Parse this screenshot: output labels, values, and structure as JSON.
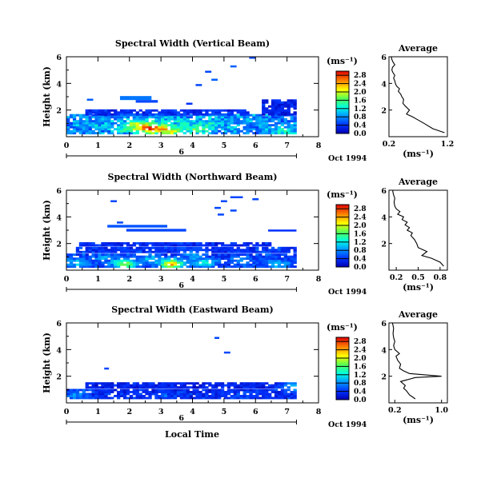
{
  "figure": {
    "bottom_xlabel": "Local Time",
    "colorbar": {
      "label": "(ms⁻¹)",
      "ticks": [
        "0.0",
        "0.4",
        "0.8",
        "1.2",
        "1.6",
        "2.0",
        "2.4",
        "2.8"
      ],
      "range": [
        0.0,
        3.0
      ]
    },
    "average_title": "Average",
    "average_xlabel": "(ms⁻¹)"
  },
  "chart_data": [
    {
      "type": "heatmap",
      "title": "Spectral Width (Vertical Beam)",
      "xlabel": "",
      "ylabel": "Height (km)",
      "xlim": [
        0,
        8
      ],
      "ylim": [
        0,
        6
      ],
      "x_ticks": [
        "0",
        "1",
        "2",
        "3",
        "4",
        "5",
        "6",
        "7",
        "8"
      ],
      "y_ticks": [
        "2",
        "4",
        "6"
      ],
      "date_bar": {
        "label": "6",
        "date": "Oct 1994",
        "span": [
          0,
          7.3
        ]
      },
      "color_scale": {
        "min": 0.0,
        "max": 3.0,
        "unit": "ms-1"
      },
      "bands": [
        {
          "t0": 0.0,
          "t1": 7.3,
          "h0": 0.2,
          "h1": 1.6,
          "level": 0.8
        },
        {
          "t0": 0.6,
          "t1": 5.8,
          "h0": 1.6,
          "h1": 2.0,
          "level": 0.35
        },
        {
          "t0": 6.2,
          "t1": 7.3,
          "h0": 1.6,
          "h1": 2.7,
          "level": 0.3
        }
      ],
      "cells": [
        {
          "t": 2.6,
          "h": 0.5,
          "v": 2.4
        },
        {
          "t": 2.2,
          "h": 0.8,
          "v": 1.9
        },
        {
          "t": 3.0,
          "h": 0.6,
          "v": 1.6
        },
        {
          "t": 1.7,
          "h": 0.5,
          "v": 1.3
        },
        {
          "t": 4.1,
          "h": 0.5,
          "v": 1.7
        },
        {
          "t": 4.5,
          "h": 0.9,
          "v": 1.2
        },
        {
          "t": 3.6,
          "h": 1.0,
          "v": 1.1
        },
        {
          "t": 5.2,
          "h": 0.4,
          "v": 1.0
        },
        {
          "t": 1.1,
          "h": 0.9,
          "v": 1.0
        },
        {
          "t": 6.4,
          "h": 0.6,
          "v": 1.0
        },
        {
          "t": 0.4,
          "h": 0.7,
          "v": 0.9
        },
        {
          "t": 2.9,
          "h": 1.2,
          "v": 1.1
        },
        {
          "t": 5.8,
          "h": 1.1,
          "v": 0.9
        },
        {
          "t": 6.9,
          "h": 0.3,
          "v": 1.2
        },
        {
          "t": 3.3,
          "h": 0.3,
          "v": 1.8
        },
        {
          "t": 1.9,
          "h": 1.3,
          "v": 0.9
        },
        {
          "t": 4.8,
          "h": 1.3,
          "v": 1.0
        }
      ],
      "patches": [
        {
          "t0": 0.65,
          "t1": 0.85,
          "h0": 2.7,
          "h1": 2.85,
          "v": 0.6
        },
        {
          "t0": 1.7,
          "t1": 2.7,
          "h0": 2.75,
          "h1": 3.05,
          "v": 0.7
        },
        {
          "t0": 2.2,
          "t1": 2.9,
          "h0": 2.55,
          "h1": 2.75,
          "v": 0.5
        },
        {
          "t0": 3.8,
          "t1": 4.0,
          "h0": 2.4,
          "h1": 2.55,
          "v": 0.4
        },
        {
          "t0": 4.1,
          "t1": 4.3,
          "h0": 3.8,
          "h1": 3.95,
          "v": 0.5
        },
        {
          "t0": 4.6,
          "t1": 4.8,
          "h0": 4.2,
          "h1": 4.35,
          "v": 0.6
        },
        {
          "t0": 4.4,
          "t1": 4.6,
          "h0": 4.8,
          "h1": 4.95,
          "v": 0.5
        },
        {
          "t0": 5.2,
          "t1": 5.4,
          "h0": 5.2,
          "h1": 5.35,
          "v": 0.6
        },
        {
          "t0": 5.8,
          "t1": 6.0,
          "h0": 5.85,
          "h1": 6.0,
          "v": 0.5
        }
      ],
      "average": {
        "xlim": [
          0.2,
          1.2
        ],
        "ylim": [
          0,
          6
        ],
        "x_ticks": [
          "0.2",
          "1.2"
        ],
        "y_ticks": [
          "2",
          "4",
          "6"
        ],
        "x": [
          1.15,
          0.95,
          0.8,
          0.68,
          0.6,
          0.5,
          0.55,
          0.48,
          0.44,
          0.45,
          0.42,
          0.4,
          0.36,
          0.38,
          0.33,
          0.31,
          0.3,
          0.28,
          0.3,
          0.27,
          0.25,
          0.26,
          0.3,
          0.27,
          0.25,
          0.24
        ],
        "h": [
          0.3,
          0.6,
          1.0,
          1.3,
          1.5,
          1.7,
          2.0,
          2.3,
          2.5,
          2.8,
          3.0,
          3.2,
          3.4,
          3.6,
          3.8,
          4.0,
          4.2,
          4.4,
          4.6,
          4.8,
          5.0,
          5.2,
          5.4,
          5.6,
          5.8,
          6.0
        ]
      }
    },
    {
      "type": "heatmap",
      "title": "Spectral Width (Northward Beam)",
      "xlabel": "",
      "ylabel": "Height (km)",
      "xlim": [
        0,
        8
      ],
      "ylim": [
        0,
        6
      ],
      "x_ticks": [
        "0",
        "1",
        "2",
        "3",
        "4",
        "5",
        "6",
        "7",
        "8"
      ],
      "y_ticks": [
        "2",
        "4",
        "6"
      ],
      "date_bar": {
        "label": "6",
        "date": "Oct 1994",
        "span": [
          0,
          7.3
        ]
      },
      "color_scale": {
        "min": 0.0,
        "max": 3.0,
        "unit": "ms-1"
      },
      "bands": [
        {
          "t0": 0.0,
          "t1": 7.3,
          "h0": 0.2,
          "h1": 1.2,
          "level": 0.45
        },
        {
          "t0": 0.3,
          "t1": 7.3,
          "h0": 1.3,
          "h1": 1.7,
          "level": 0.4
        },
        {
          "t0": 0.4,
          "t1": 6.5,
          "h0": 1.8,
          "h1": 2.1,
          "level": 0.35
        }
      ],
      "cells": [
        {
          "t": 3.3,
          "h": 0.4,
          "v": 2.3
        },
        {
          "t": 1.8,
          "h": 0.4,
          "v": 1.8
        },
        {
          "t": 0.3,
          "h": 0.5,
          "v": 1.1
        },
        {
          "t": 2.6,
          "h": 0.8,
          "v": 1.0
        },
        {
          "t": 4.3,
          "h": 0.5,
          "v": 1.2
        },
        {
          "t": 5.5,
          "h": 0.7,
          "v": 0.9
        },
        {
          "t": 6.7,
          "h": 0.4,
          "v": 1.0
        },
        {
          "t": 1.2,
          "h": 0.9,
          "v": 0.8
        },
        {
          "t": 3.9,
          "h": 1.1,
          "v": 0.8
        }
      ],
      "patches": [
        {
          "t0": 1.3,
          "t1": 3.2,
          "h0": 3.2,
          "h1": 3.4,
          "v": 0.55
        },
        {
          "t0": 1.9,
          "t1": 3.8,
          "h0": 2.9,
          "h1": 3.1,
          "v": 0.5
        },
        {
          "t0": 6.4,
          "t1": 7.3,
          "h0": 2.9,
          "h1": 3.05,
          "v": 0.4
        },
        {
          "t0": 1.6,
          "t1": 1.8,
          "h0": 3.5,
          "h1": 3.65,
          "v": 0.5
        },
        {
          "t0": 1.4,
          "t1": 1.6,
          "h0": 5.1,
          "h1": 5.25,
          "v": 0.5
        },
        {
          "t0": 4.8,
          "t1": 5.0,
          "h0": 4.1,
          "h1": 4.25,
          "v": 0.5
        },
        {
          "t0": 5.2,
          "t1": 5.4,
          "h0": 4.4,
          "h1": 4.55,
          "v": 0.5
        },
        {
          "t0": 5.2,
          "t1": 5.6,
          "h0": 5.4,
          "h1": 5.55,
          "v": 0.5
        },
        {
          "t0": 4.9,
          "t1": 5.1,
          "h0": 5.1,
          "h1": 5.25,
          "v": 0.5
        },
        {
          "t0": 5.9,
          "t1": 6.1,
          "h0": 5.25,
          "h1": 5.4,
          "v": 0.5
        },
        {
          "t0": 4.7,
          "t1": 4.9,
          "h0": 4.6,
          "h1": 4.75,
          "v": 0.5
        }
      ],
      "average": {
        "xlim": [
          0.1,
          0.9
        ],
        "ylim": [
          0,
          6
        ],
        "x_ticks": [
          "0.2",
          "0.5",
          "0.8"
        ],
        "y_ticks": [
          "2",
          "4",
          "6"
        ],
        "x": [
          0.85,
          0.8,
          0.68,
          0.55,
          0.62,
          0.5,
          0.48,
          0.45,
          0.4,
          0.42,
          0.35,
          0.38,
          0.32,
          0.35,
          0.28,
          0.3,
          0.22,
          0.25,
          0.2,
          0.18,
          0.17,
          0.18,
          0.16,
          0.15
        ],
        "h": [
          0.3,
          0.6,
          0.9,
          1.1,
          1.4,
          1.7,
          2.0,
          2.3,
          2.6,
          2.8,
          3.0,
          3.2,
          3.4,
          3.6,
          3.8,
          4.0,
          4.2,
          4.4,
          4.6,
          4.8,
          5.1,
          5.4,
          5.7,
          6.0
        ]
      }
    },
    {
      "type": "heatmap",
      "title": "Spectral Width (Eastward Beam)",
      "xlabel": "Local Time",
      "ylabel": "Height (km)",
      "xlim": [
        0,
        8
      ],
      "ylim": [
        0,
        6
      ],
      "x_ticks": [
        "0",
        "1",
        "2",
        "3",
        "4",
        "5",
        "6",
        "7",
        "8"
      ],
      "y_ticks": [
        "2",
        "4",
        "6"
      ],
      "date_bar": {
        "label": "6",
        "date": "Oct 1994",
        "span": [
          0,
          7.3
        ]
      },
      "color_scale": {
        "min": 0.0,
        "max": 3.0,
        "unit": "ms-1"
      },
      "bands": [
        {
          "t0": 0.0,
          "t1": 7.3,
          "h0": 0.3,
          "h1": 1.0,
          "level": 0.35
        },
        {
          "t0": 0.6,
          "t1": 7.3,
          "h0": 1.1,
          "h1": 1.5,
          "level": 0.3
        }
      ],
      "cells": [
        {
          "t": 0.3,
          "h": 0.5,
          "v": 0.8
        },
        {
          "t": 3.0,
          "h": 0.4,
          "v": 0.6
        },
        {
          "t": 5.6,
          "h": 0.5,
          "v": 0.5
        },
        {
          "t": 7.1,
          "h": 1.2,
          "v": 1.0
        }
      ],
      "patches": [
        {
          "t0": 1.2,
          "t1": 1.35,
          "h0": 2.5,
          "h1": 2.65,
          "v": 0.5
        },
        {
          "t0": 5.0,
          "t1": 5.2,
          "h0": 3.7,
          "h1": 3.85,
          "v": 0.5
        },
        {
          "t0": 4.7,
          "t1": 4.85,
          "h0": 4.8,
          "h1": 4.95,
          "v": 0.5
        }
      ],
      "average": {
        "xlim": [
          0.1,
          1.1
        ],
        "ylim": [
          0,
          6
        ],
        "x_ticks": [
          "0.2",
          "1.0"
        ],
        "y_ticks": [
          "2",
          "4",
          "6"
        ],
        "x": [
          0.55,
          0.45,
          0.4,
          0.35,
          0.38,
          0.3,
          0.55,
          1.0,
          0.45,
          0.35,
          0.28,
          0.3,
          0.25,
          0.22,
          0.28,
          0.2,
          0.18,
          0.2,
          0.18,
          0.17,
          0.18,
          0.16
        ],
        "h": [
          0.3,
          0.6,
          0.9,
          1.1,
          1.3,
          1.6,
          1.9,
          2.0,
          2.2,
          2.4,
          2.6,
          2.9,
          3.2,
          3.5,
          3.7,
          4.0,
          4.3,
          4.6,
          4.9,
          5.2,
          5.6,
          6.0
        ]
      }
    }
  ]
}
